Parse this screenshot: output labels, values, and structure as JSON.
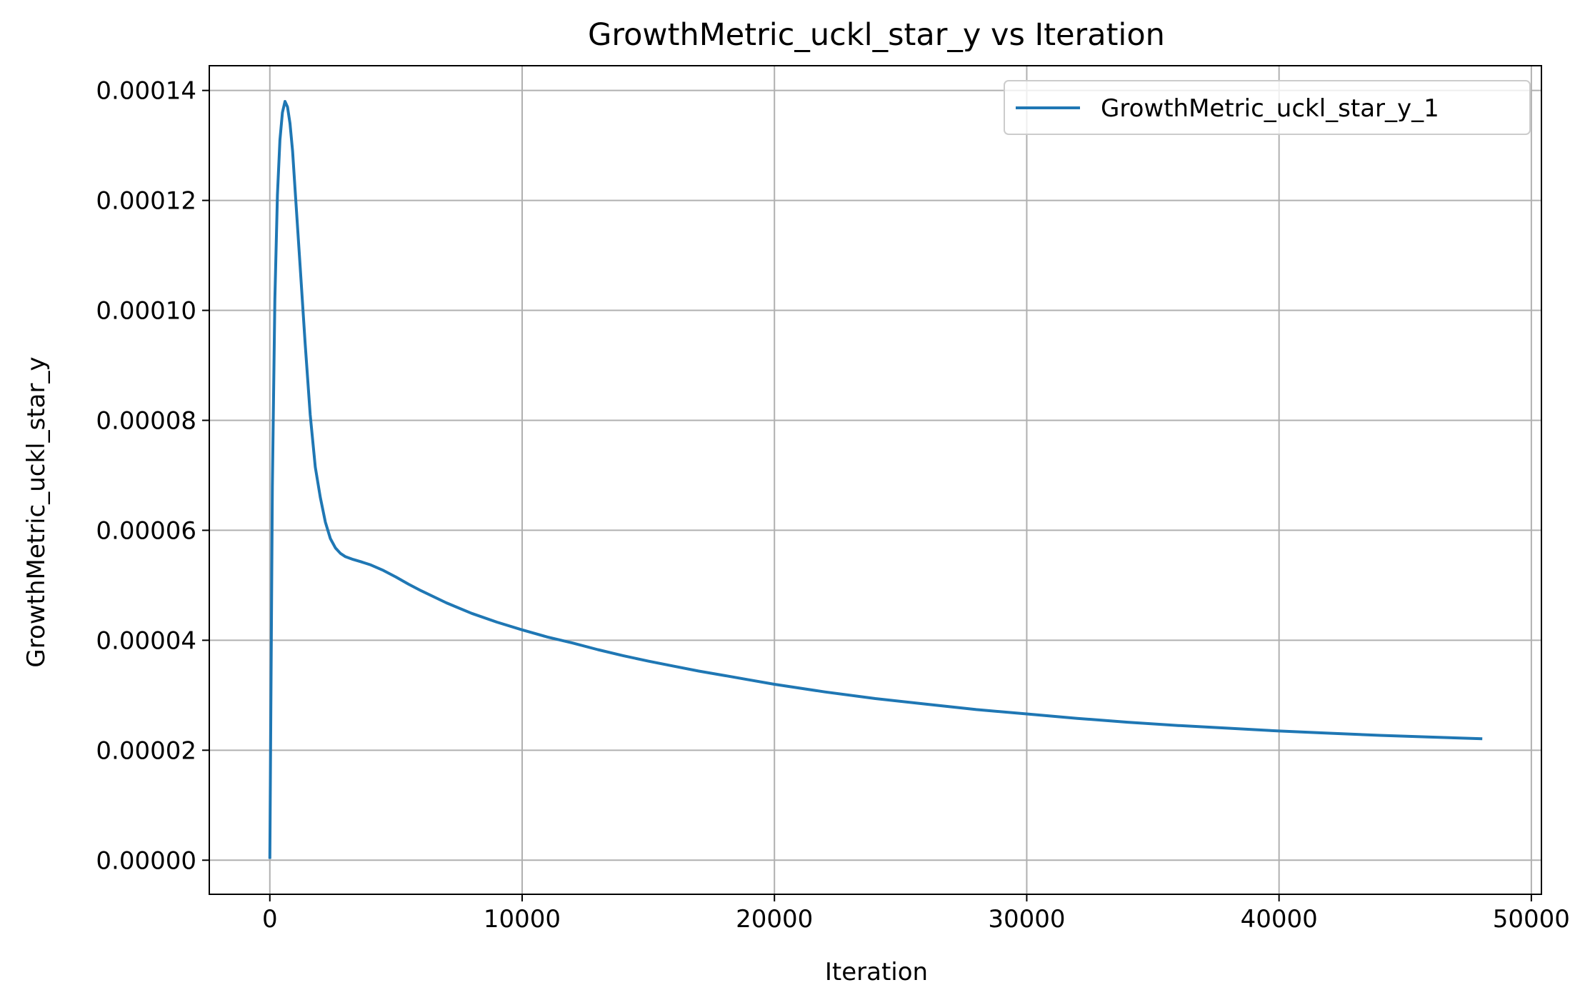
{
  "chart_data": {
    "type": "line",
    "title": "GrowthMetric_uckl_star_y vs Iteration",
    "xlabel": "Iteration",
    "ylabel": "GrowthMetric_uckl_star_y",
    "xlim": [
      -2400,
      50400
    ],
    "ylim": [
      -6.2e-06,
      0.0001445
    ],
    "xticks": [
      0,
      10000,
      20000,
      30000,
      40000,
      50000
    ],
    "xtick_labels": [
      "0",
      "10000",
      "20000",
      "30000",
      "40000",
      "50000"
    ],
    "yticks": [
      0,
      2e-05,
      4e-05,
      6e-05,
      8e-05,
      0.0001,
      0.00012,
      0.00014
    ],
    "ytick_labels": [
      "0.00000",
      "0.00002",
      "0.00004",
      "0.00006",
      "0.00008",
      "0.00010",
      "0.00012",
      "0.00014"
    ],
    "grid": true,
    "legend_position": "top-right",
    "colors": {
      "series": "#1f77b4",
      "grid": "#b0b0b0",
      "axes": "#000000"
    },
    "series": [
      {
        "name": "GrowthMetric_uckl_star_y_1",
        "x": [
          0,
          100,
          200,
          300,
          400,
          500,
          600,
          700,
          800,
          900,
          1000,
          1200,
          1400,
          1600,
          1800,
          2000,
          2200,
          2400,
          2600,
          2800,
          3000,
          3300,
          3600,
          4000,
          4500,
          5000,
          5500,
          6000,
          7000,
          8000,
          9000,
          10000,
          11000,
          12000,
          13000,
          14000,
          15000,
          16000,
          17000,
          18000,
          19000,
          20000,
          22000,
          24000,
          26000,
          28000,
          30000,
          32000,
          34000,
          36000,
          38000,
          40000,
          42000,
          44000,
          46000,
          48000
        ],
        "y": [
          5e-07,
          6.8e-05,
          0.000102,
          0.000121,
          0.000131,
          0.000136,
          0.000138,
          0.000137,
          0.000134,
          0.000129,
          0.000122,
          0.000108,
          9.4e-05,
          8.1e-05,
          7.15e-05,
          6.6e-05,
          6.15e-05,
          5.85e-05,
          5.68e-05,
          5.58e-05,
          5.52e-05,
          5.47e-05,
          5.43e-05,
          5.37e-05,
          5.27e-05,
          5.15e-05,
          5.02e-05,
          4.9e-05,
          4.68e-05,
          4.49e-05,
          4.33e-05,
          4.19e-05,
          4.06e-05,
          3.95e-05,
          3.83e-05,
          3.72e-05,
          3.62e-05,
          3.53e-05,
          3.44e-05,
          3.36e-05,
          3.28e-05,
          3.2e-05,
          3.06e-05,
          2.94e-05,
          2.84e-05,
          2.74e-05,
          2.66e-05,
          2.58e-05,
          2.51e-05,
          2.45e-05,
          2.4e-05,
          2.35e-05,
          2.31e-05,
          2.27e-05,
          2.24e-05,
          2.21e-05
        ]
      }
    ]
  }
}
